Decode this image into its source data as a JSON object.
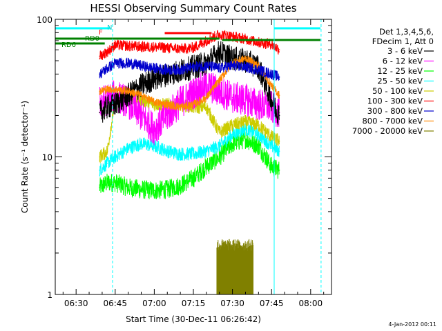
{
  "chart_data": {
    "type": "line",
    "title": "HESSI Observing Summary Count Rates",
    "xlabel": "Start Time (30-Dec-11 06:26:42)",
    "ylabel": "Count Rate (s⁻¹ detector⁻¹)",
    "yscale": "log",
    "ylim": [
      1,
      100
    ],
    "xlim": [
      "06:22",
      "08:08"
    ],
    "x_ticks": [
      "06:30",
      "06:45",
      "07:00",
      "07:15",
      "07:30",
      "07:45",
      "08:00"
    ],
    "y_ticks": [
      "1",
      "10",
      "100"
    ],
    "footer": "4-Jan-2012 00:11",
    "legend_header": [
      "Det 1,3,4,5,6,",
      "FDecim 1, Att 0"
    ],
    "annotations": [
      "RD0",
      "RD6",
      "N",
      "F"
    ],
    "series": [
      {
        "name": "3 - 6 keV",
        "color": "#000000",
        "x": [
          "06:39",
          "06:42",
          "06:45",
          "06:50",
          "06:55",
          "07:00",
          "07:05",
          "07:10",
          "07:15",
          "07:20",
          "07:25",
          "07:30",
          "07:35",
          "07:40",
          "07:45",
          "07:48"
        ],
        "values": [
          21,
          23,
          24,
          28,
          33,
          37,
          40,
          42,
          45,
          48,
          58,
          52,
          50,
          45,
          26,
          20
        ]
      },
      {
        "name": "6 - 12 keV",
        "color": "#ff00ff",
        "x": [
          "06:39",
          "06:42",
          "06:45",
          "06:50",
          "06:55",
          "07:00",
          "07:05",
          "07:10",
          "07:15",
          "07:20",
          "07:25",
          "07:30",
          "07:35",
          "07:40",
          "07:45",
          "07:48"
        ],
        "values": [
          25,
          26,
          28,
          25,
          20,
          16,
          20,
          25,
          29,
          33,
          30,
          27,
          26,
          24,
          23,
          21
        ]
      },
      {
        "name": "12 - 25 keV",
        "color": "#00ff00",
        "x": [
          "06:39",
          "06:42",
          "06:45",
          "06:50",
          "06:55",
          "07:00",
          "07:05",
          "07:10",
          "07:15",
          "07:20",
          "07:25",
          "07:30",
          "07:35",
          "07:40",
          "07:45",
          "07:48"
        ],
        "values": [
          6,
          6.5,
          6.5,
          6,
          5.8,
          5.7,
          5.8,
          6.2,
          7,
          8.5,
          10,
          12.5,
          13.5,
          12,
          8.5,
          8
        ]
      },
      {
        "name": "25 - 50 keV",
        "color": "#00ffff",
        "x": [
          "06:39",
          "06:42",
          "06:45",
          "06:50",
          "06:55",
          "07:00",
          "07:05",
          "07:10",
          "07:15",
          "07:20",
          "07:25",
          "07:30",
          "07:35",
          "07:40",
          "07:45",
          "07:48"
        ],
        "values": [
          8,
          9,
          10,
          11.5,
          12.5,
          12,
          11,
          10.5,
          10.5,
          11,
          12,
          14.5,
          16,
          14.5,
          12,
          11
        ]
      },
      {
        "name": "50 - 100 keV",
        "color": "#cccc00",
        "x": [
          "06:39",
          "06:42",
          "06:45",
          "06:50",
          "06:55",
          "07:00",
          "07:05",
          "07:10",
          "07:15",
          "07:20",
          "07:25",
          "07:30",
          "07:35",
          "07:40",
          "07:45",
          "07:48"
        ],
        "values": [
          10,
          11,
          27,
          27,
          26,
          24,
          24,
          24,
          23,
          23,
          15,
          17,
          18,
          17,
          14,
          13
        ]
      },
      {
        "name": "100 - 300 keV",
        "color": "#ff0000",
        "x": [
          "06:39",
          "06:42",
          "06:45",
          "06:50",
          "06:55",
          "07:00",
          "07:05",
          "07:10",
          "07:15",
          "07:20",
          "07:25",
          "07:30",
          "07:35",
          "07:40",
          "07:45",
          "07:48"
        ],
        "values": [
          54,
          58,
          65,
          64,
          63,
          63,
          62,
          61,
          62,
          70,
          78,
          75,
          72,
          68,
          66,
          60
        ]
      },
      {
        "name": "300 - 800 keV",
        "color": "#0000cc",
        "x": [
          "06:39",
          "06:42",
          "06:45",
          "06:50",
          "06:55",
          "07:00",
          "07:05",
          "07:10",
          "07:15",
          "07:20",
          "07:25",
          "07:30",
          "07:35",
          "07:40",
          "07:45",
          "07:48"
        ],
        "values": [
          40,
          44,
          48,
          48,
          46,
          44,
          43,
          43,
          45,
          46,
          44,
          46,
          45,
          43,
          40,
          38
        ]
      },
      {
        "name": "800 - 7000 keV",
        "color": "#ff8800",
        "x": [
          "06:39",
          "06:42",
          "06:45",
          "06:50",
          "06:55",
          "07:00",
          "07:05",
          "07:10",
          "07:15",
          "07:20",
          "07:25",
          "07:30",
          "07:35",
          "07:40",
          "07:45",
          "07:48"
        ],
        "values": [
          30,
          31,
          31,
          30,
          28,
          25,
          24,
          23,
          24,
          27,
          36,
          48,
          52,
          46,
          33,
          28
        ]
      },
      {
        "name": "7000 - 20000 keV",
        "color": "#808000",
        "x": [
          "07:24",
          "07:26",
          "07:28",
          "07:30",
          "07:32",
          "07:34",
          "07:36",
          "07:38"
        ],
        "values": [
          2.3,
          2.3,
          2.3,
          2.3,
          2.3,
          2.3,
          2.3,
          2.3
        ]
      }
    ],
    "grid": false,
    "legend_position": "outside-right"
  }
}
